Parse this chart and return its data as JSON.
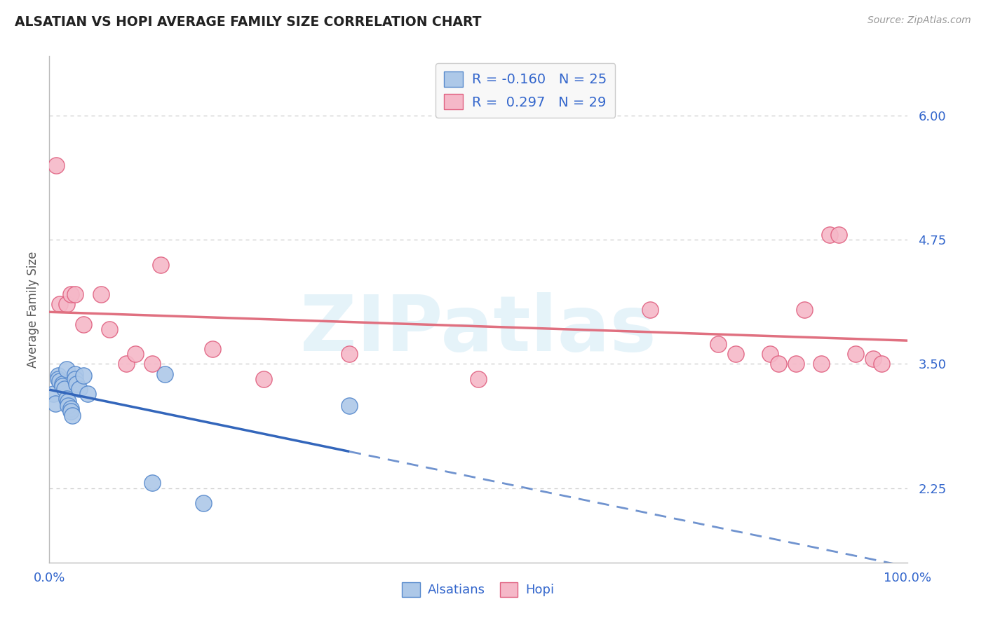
{
  "title": "ALSATIAN VS HOPI AVERAGE FAMILY SIZE CORRELATION CHART",
  "source": "Source: ZipAtlas.com",
  "ylabel": "Average Family Size",
  "xlim": [
    0.0,
    1.0
  ],
  "ylim": [
    1.5,
    6.6
  ],
  "yticks": [
    2.25,
    3.5,
    4.75,
    6.0
  ],
  "xtick_labels": [
    "0.0%",
    "100.0%"
  ],
  "background_color": "#ffffff",
  "grid_color": "#cccccc",
  "watermark": "ZIPatlas",
  "alsatians_color": "#adc8e8",
  "alsatians_edge_color": "#5588cc",
  "hopi_color": "#f5b8c8",
  "hopi_edge_color": "#e06080",
  "alsatians_line_color": "#3366bb",
  "hopi_line_color": "#e07080",
  "alsatians_R": -0.16,
  "alsatians_N": 25,
  "hopi_R": 0.297,
  "hopi_N": 29,
  "alsatians_x": [
    0.005,
    0.007,
    0.01,
    0.01,
    0.012,
    0.015,
    0.015,
    0.018,
    0.02,
    0.02,
    0.022,
    0.022,
    0.025,
    0.025,
    0.027,
    0.03,
    0.03,
    0.032,
    0.035,
    0.04,
    0.045,
    0.12,
    0.135,
    0.18,
    0.35
  ],
  "alsatians_y": [
    3.2,
    3.1,
    3.38,
    3.35,
    3.33,
    3.3,
    3.28,
    3.25,
    3.45,
    3.15,
    3.12,
    3.08,
    3.05,
    3.02,
    2.98,
    3.4,
    3.35,
    3.3,
    3.25,
    3.38,
    3.2,
    2.3,
    3.4,
    2.1,
    3.08
  ],
  "hopi_x": [
    0.008,
    0.012,
    0.02,
    0.025,
    0.03,
    0.04,
    0.06,
    0.07,
    0.09,
    0.1,
    0.12,
    0.13,
    0.19,
    0.25,
    0.35,
    0.5,
    0.7,
    0.78,
    0.8,
    0.84,
    0.85,
    0.87,
    0.88,
    0.9,
    0.91,
    0.92,
    0.94,
    0.96,
    0.97
  ],
  "hopi_y": [
    5.5,
    4.1,
    4.1,
    4.2,
    4.2,
    3.9,
    4.2,
    3.85,
    3.5,
    3.6,
    3.5,
    4.5,
    3.65,
    3.35,
    3.6,
    3.35,
    4.05,
    3.7,
    3.6,
    3.6,
    3.5,
    3.5,
    4.05,
    3.5,
    4.8,
    4.8,
    3.6,
    3.55,
    3.5
  ]
}
